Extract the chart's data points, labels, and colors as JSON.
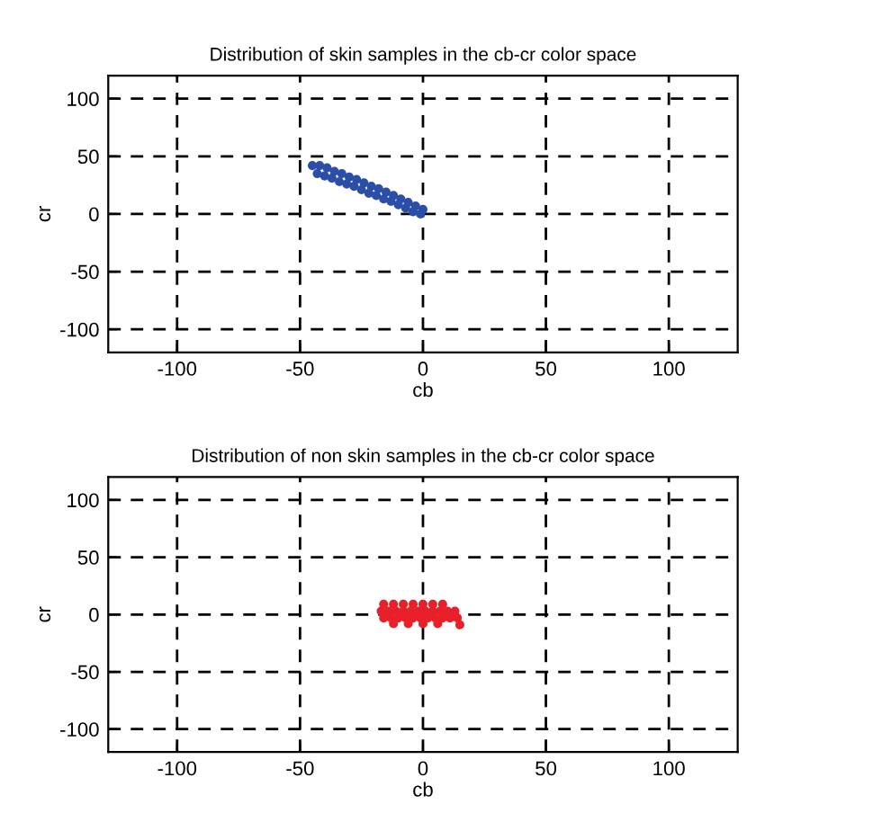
{
  "chart_data": [
    {
      "type": "scatter",
      "title": "Distribution of skin samples in the cb-cr color space",
      "xlabel": "cb",
      "ylabel": "cr",
      "xlim": [
        -128,
        128
      ],
      "ylim": [
        -120,
        120
      ],
      "xticks": [
        -100,
        -50,
        0,
        50,
        100
      ],
      "yticks": [
        -100,
        -50,
        0,
        50,
        100
      ],
      "grid": true,
      "marker": "circle",
      "series": [
        {
          "color": "#2b4fa8",
          "x": [
            -45,
            -42,
            -39,
            -36,
            -33,
            -30,
            -27,
            -24,
            -21,
            -18,
            -15,
            -12,
            -9,
            -6,
            -3,
            0,
            -43,
            -40,
            -37,
            -34,
            -31,
            -28,
            -25,
            -22,
            -19,
            -16,
            -13,
            -10,
            -7,
            -4,
            -1
          ],
          "values": [
            42,
            42,
            40,
            37,
            35,
            32,
            30,
            27,
            24,
            22,
            19,
            16,
            13,
            10,
            7,
            4,
            35,
            33,
            31,
            28,
            26,
            24,
            21,
            18,
            16,
            13,
            11,
            8,
            5,
            2,
            0
          ]
        }
      ]
    },
    {
      "type": "scatter",
      "title": "Distribution of non skin samples in the cb-cr color space",
      "xlabel": "cb",
      "ylabel": "cr",
      "xlim": [
        -128,
        128
      ],
      "ylim": [
        -120,
        120
      ],
      "xticks": [
        -100,
        -50,
        0,
        50,
        100
      ],
      "yticks": [
        -100,
        -50,
        0,
        50,
        100
      ],
      "grid": true,
      "marker": "circle",
      "series": [
        {
          "color": "#e8202a",
          "x": [
            -16,
            -12,
            -8,
            -4,
            0,
            4,
            8,
            -17,
            -14,
            -11,
            -8,
            -5,
            -2,
            1,
            4,
            7,
            10,
            13,
            -16,
            -13,
            -10,
            -7,
            -4,
            -1,
            2,
            5,
            8,
            11,
            14,
            -12,
            -6,
            0,
            6,
            15
          ],
          "values": [
            9,
            9,
            9,
            9,
            9,
            9,
            9,
            3,
            3,
            3,
            3,
            3,
            3,
            3,
            3,
            3,
            3,
            3,
            -3,
            -3,
            -3,
            -3,
            -3,
            -3,
            -3,
            -3,
            -3,
            -3,
            -3,
            -8,
            -8,
            -8,
            -8,
            -9
          ]
        }
      ]
    }
  ]
}
